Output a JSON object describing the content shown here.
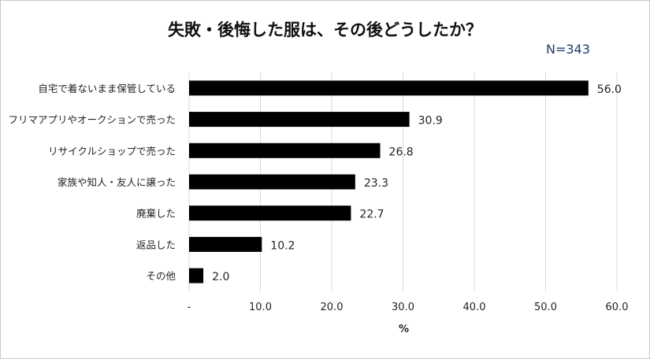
{
  "title": "失敗・後悔した服は、その後どうしたか？",
  "sample_size": "N=343",
  "chart_data": {
    "type": "bar",
    "orientation": "horizontal",
    "categories": [
      "自宅で着ないまま保管している",
      "フリマアプリやオークションで売った",
      "リサイクルショップで売った",
      "家族や知人・友人に譲った",
      "廃棄した",
      "返品した",
      "その他"
    ],
    "values": [
      56.0,
      30.9,
      26.8,
      23.3,
      22.7,
      10.2,
      2.0
    ],
    "value_labels": [
      "56.0",
      "30.9",
      "26.8",
      "23.3",
      "22.7",
      "10.2",
      "2.0"
    ],
    "xlim": [
      0,
      60
    ],
    "xticks": [
      "-",
      "10.0",
      "20.0",
      "30.0",
      "40.0",
      "50.0",
      "60.0"
    ],
    "xlabel": "%",
    "grid": "vertical",
    "bar_color": "#000000",
    "grid_color": "#cfdbe8"
  }
}
